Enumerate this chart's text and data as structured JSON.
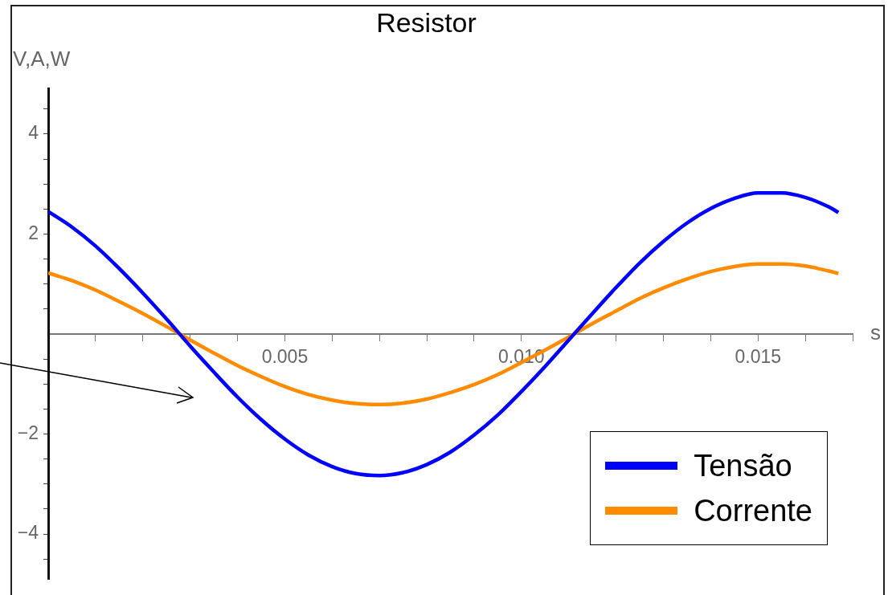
{
  "chart_data": {
    "type": "line",
    "title": "Resistor",
    "xlabel": "s",
    "ylabel": "V,A,W",
    "x": [
      0,
      0.0005,
      0.001,
      0.0015,
      0.002,
      0.0025,
      0.003,
      0.0035,
      0.004,
      0.0045,
      0.005,
      0.0055,
      0.006,
      0.0065,
      0.007,
      0.0075,
      0.008,
      0.0085,
      0.009,
      0.0095,
      0.01,
      0.0105,
      0.011,
      0.0115,
      0.012,
      0.0125,
      0.013,
      0.0135,
      0.014,
      0.0145,
      0.015,
      0.0155,
      0.016,
      0.0165,
      0.0167
    ],
    "series": [
      {
        "name": "Tensão",
        "color": "#0000ff",
        "values": [
          2.45,
          2.14,
          1.76,
          1.31,
          0.82,
          0.3,
          -0.24,
          -0.76,
          -1.26,
          -1.71,
          -2.1,
          -2.42,
          -2.65,
          -2.79,
          -2.83,
          -2.77,
          -2.61,
          -2.36,
          -2.02,
          -1.62,
          -1.15,
          -0.65,
          -0.12,
          0.41,
          0.93,
          1.42,
          1.85,
          2.22,
          2.51,
          2.71,
          2.82,
          2.82,
          2.73,
          2.54,
          2.43
        ]
      },
      {
        "name": "Corrente",
        "color": "#ff8c00",
        "values": [
          1.22,
          1.07,
          0.88,
          0.65,
          0.41,
          0.15,
          -0.12,
          -0.38,
          -0.63,
          -0.85,
          -1.05,
          -1.21,
          -1.32,
          -1.39,
          -1.41,
          -1.38,
          -1.3,
          -1.17,
          -1.01,
          -0.81,
          -0.57,
          -0.32,
          -0.06,
          0.21,
          0.46,
          0.71,
          0.92,
          1.1,
          1.25,
          1.35,
          1.4,
          1.4,
          1.36,
          1.26,
          1.21
        ]
      }
    ],
    "xlim": [
      0,
      0.017
    ],
    "xticks": [
      {
        "value": 0.001,
        "label": null
      },
      {
        "value": 0.002,
        "label": null
      },
      {
        "value": 0.003,
        "label": null
      },
      {
        "value": 0.004,
        "label": null
      },
      {
        "value": 0.005,
        "label": "0.005"
      },
      {
        "value": 0.006,
        "label": null
      },
      {
        "value": 0.007,
        "label": null
      },
      {
        "value": 0.008,
        "label": null
      },
      {
        "value": 0.009,
        "label": null
      },
      {
        "value": 0.01,
        "label": "0.010"
      },
      {
        "value": 0.011,
        "label": null
      },
      {
        "value": 0.012,
        "label": null
      },
      {
        "value": 0.013,
        "label": null
      },
      {
        "value": 0.014,
        "label": null
      },
      {
        "value": 0.015,
        "label": "0.015"
      },
      {
        "value": 0.016,
        "label": null
      },
      {
        "value": 0.017,
        "label": null
      }
    ],
    "ylim": [
      -4.9,
      4.9
    ],
    "yticks": [
      {
        "value": -4.5,
        "label": null
      },
      {
        "value": -4,
        "label": "−4"
      },
      {
        "value": -3.5,
        "label": null
      },
      {
        "value": -3,
        "label": null
      },
      {
        "value": -2.5,
        "label": null
      },
      {
        "value": -2,
        "label": "−2"
      },
      {
        "value": -1.5,
        "label": null
      },
      {
        "value": -1,
        "label": null
      },
      {
        "value": -0.5,
        "label": null
      },
      {
        "value": 0.5,
        "label": null
      },
      {
        "value": 1,
        "label": null
      },
      {
        "value": 1.5,
        "label": null
      },
      {
        "value": 2,
        "label": "2"
      },
      {
        "value": 2.5,
        "label": null
      },
      {
        "value": 3,
        "label": null
      },
      {
        "value": 3.5,
        "label": null
      },
      {
        "value": 4,
        "label": "4"
      },
      {
        "value": 4.5,
        "label": null
      }
    ],
    "grid": false,
    "legend": "bottom right",
    "marker": "none",
    "line_style": "solid"
  }
}
